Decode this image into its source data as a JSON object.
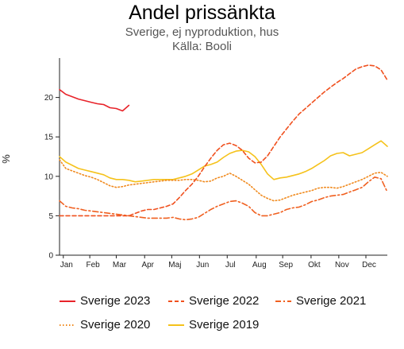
{
  "title": "Andel prissänkta",
  "subtitle": "Sverige, ej nyproduktion, hus",
  "source": "Källa: Booli",
  "chart_data": {
    "type": "line",
    "title": "Andel prissänkta",
    "ylabel": "%",
    "ylim": [
      0,
      25
    ],
    "yticks": [
      0,
      5,
      10,
      15,
      20
    ],
    "xlim": [
      0,
      52
    ],
    "month_labels": [
      "Jan",
      "Feb",
      "Mar",
      "Apr",
      "Maj",
      "Jun",
      "Jul",
      "Aug",
      "Sep",
      "Okt",
      "Nov",
      "Dec"
    ],
    "month_positions": [
      0.6,
      4.8,
      9.0,
      13.5,
      17.8,
      22.2,
      26.6,
      31.2,
      35.4,
      39.9,
      44.3,
      48.6
    ],
    "grid": false,
    "legend_position": "bottom",
    "series": [
      {
        "name": "Sverige 2023",
        "color": "#e8232a",
        "dash": "solid",
        "x": [
          0,
          1,
          2,
          3,
          4,
          5,
          6,
          7,
          8,
          9,
          10,
          11
        ],
        "y": [
          21.0,
          20.4,
          20.1,
          19.8,
          19.6,
          19.4,
          19.2,
          19.1,
          18.7,
          18.6,
          18.3,
          19.0
        ]
      },
      {
        "name": "Sverige 2022",
        "color": "#f0501e",
        "dash": "dash",
        "x": [
          0,
          1,
          2,
          3,
          4,
          5,
          6,
          7,
          8,
          9,
          10,
          11,
          12,
          13,
          14,
          15,
          16,
          17,
          18,
          19,
          20,
          21,
          22,
          23,
          24,
          25,
          26,
          27,
          28,
          29,
          30,
          31,
          32,
          33,
          34,
          35,
          36,
          37,
          38,
          39,
          40,
          41,
          42,
          43,
          44,
          45,
          46,
          47,
          48,
          49,
          50,
          51,
          52
        ],
        "y": [
          5.0,
          5.0,
          5.0,
          5.0,
          5.0,
          5.0,
          5.0,
          5.0,
          5.0,
          5.0,
          5.0,
          5.0,
          5.3,
          5.6,
          5.8,
          5.8,
          6.0,
          6.2,
          6.5,
          7.3,
          8.2,
          9.0,
          10.0,
          11.2,
          12.3,
          13.3,
          14.0,
          14.2,
          13.9,
          13.3,
          12.3,
          11.7,
          11.8,
          12.6,
          13.8,
          15.0,
          16.0,
          17.0,
          17.9,
          18.6,
          19.3,
          20.0,
          20.7,
          21.3,
          21.9,
          22.4,
          23.0,
          23.6,
          23.9,
          24.1,
          24.0,
          23.5,
          22.2
        ]
      },
      {
        "name": "Sverige 2021",
        "color": "#f06020",
        "dash": "dashdot",
        "x": [
          0,
          1,
          2,
          3,
          4,
          5,
          6,
          7,
          8,
          9,
          10,
          11,
          12,
          13,
          14,
          15,
          16,
          17,
          18,
          19,
          20,
          21,
          22,
          23,
          24,
          25,
          26,
          27,
          28,
          29,
          30,
          31,
          32,
          33,
          34,
          35,
          36,
          37,
          38,
          39,
          40,
          41,
          42,
          43,
          44,
          45,
          46,
          47,
          48,
          49,
          50,
          51,
          52
        ],
        "y": [
          6.9,
          6.2,
          6.0,
          5.9,
          5.7,
          5.6,
          5.5,
          5.4,
          5.3,
          5.2,
          5.1,
          5.0,
          4.9,
          4.8,
          4.7,
          4.7,
          4.7,
          4.7,
          4.8,
          4.6,
          4.5,
          4.6,
          4.8,
          5.3,
          5.8,
          6.2,
          6.5,
          6.8,
          6.9,
          6.6,
          6.2,
          5.4,
          5.0,
          5.0,
          5.2,
          5.4,
          5.8,
          6.0,
          6.1,
          6.4,
          6.8,
          7.0,
          7.3,
          7.5,
          7.6,
          7.7,
          8.0,
          8.3,
          8.6,
          9.3,
          9.9,
          9.7,
          8.0
        ]
      },
      {
        "name": "Sverige 2020",
        "color": "#f08a1e",
        "dash": "dot",
        "x": [
          0,
          1,
          2,
          3,
          4,
          5,
          6,
          7,
          8,
          9,
          10,
          11,
          12,
          13,
          14,
          15,
          16,
          17,
          18,
          19,
          20,
          21,
          22,
          23,
          24,
          25,
          26,
          27,
          28,
          29,
          30,
          31,
          32,
          33,
          34,
          35,
          36,
          37,
          38,
          39,
          40,
          41,
          42,
          43,
          44,
          45,
          46,
          47,
          48,
          49,
          50,
          51,
          52
        ],
        "y": [
          12.1,
          11.0,
          10.7,
          10.4,
          10.1,
          9.9,
          9.6,
          9.2,
          8.8,
          8.6,
          8.7,
          8.9,
          9.0,
          9.1,
          9.2,
          9.3,
          9.4,
          9.5,
          9.5,
          9.5,
          9.6,
          9.6,
          9.5,
          9.3,
          9.4,
          9.8,
          10.0,
          10.4,
          10.0,
          9.5,
          9.0,
          8.3,
          7.6,
          7.2,
          6.9,
          7.0,
          7.3,
          7.6,
          7.8,
          8.0,
          8.2,
          8.5,
          8.6,
          8.6,
          8.5,
          8.7,
          9.0,
          9.3,
          9.6,
          10.0,
          10.4,
          10.5,
          10.0
        ]
      },
      {
        "name": "Sverige 2019",
        "color": "#f5c21b",
        "dash": "solid",
        "x": [
          0,
          1,
          2,
          3,
          4,
          5,
          6,
          7,
          8,
          9,
          10,
          11,
          12,
          13,
          14,
          15,
          16,
          17,
          18,
          19,
          20,
          21,
          22,
          23,
          24,
          25,
          26,
          27,
          28,
          29,
          30,
          31,
          32,
          33,
          34,
          35,
          36,
          37,
          38,
          39,
          40,
          41,
          42,
          43,
          44,
          45,
          46,
          47,
          48,
          49,
          50,
          51,
          52
        ],
        "y": [
          12.5,
          11.8,
          11.4,
          11.0,
          10.8,
          10.6,
          10.4,
          10.2,
          9.8,
          9.6,
          9.6,
          9.5,
          9.3,
          9.4,
          9.5,
          9.6,
          9.6,
          9.6,
          9.6,
          9.8,
          10.0,
          10.3,
          10.8,
          11.3,
          11.5,
          11.8,
          12.4,
          12.9,
          13.2,
          13.3,
          13.1,
          12.5,
          11.5,
          10.3,
          9.6,
          9.8,
          9.9,
          10.1,
          10.3,
          10.6,
          11.0,
          11.5,
          12.0,
          12.6,
          12.9,
          13.0,
          12.6,
          12.8,
          13.0,
          13.5,
          14.0,
          14.5,
          13.8
        ]
      }
    ]
  }
}
